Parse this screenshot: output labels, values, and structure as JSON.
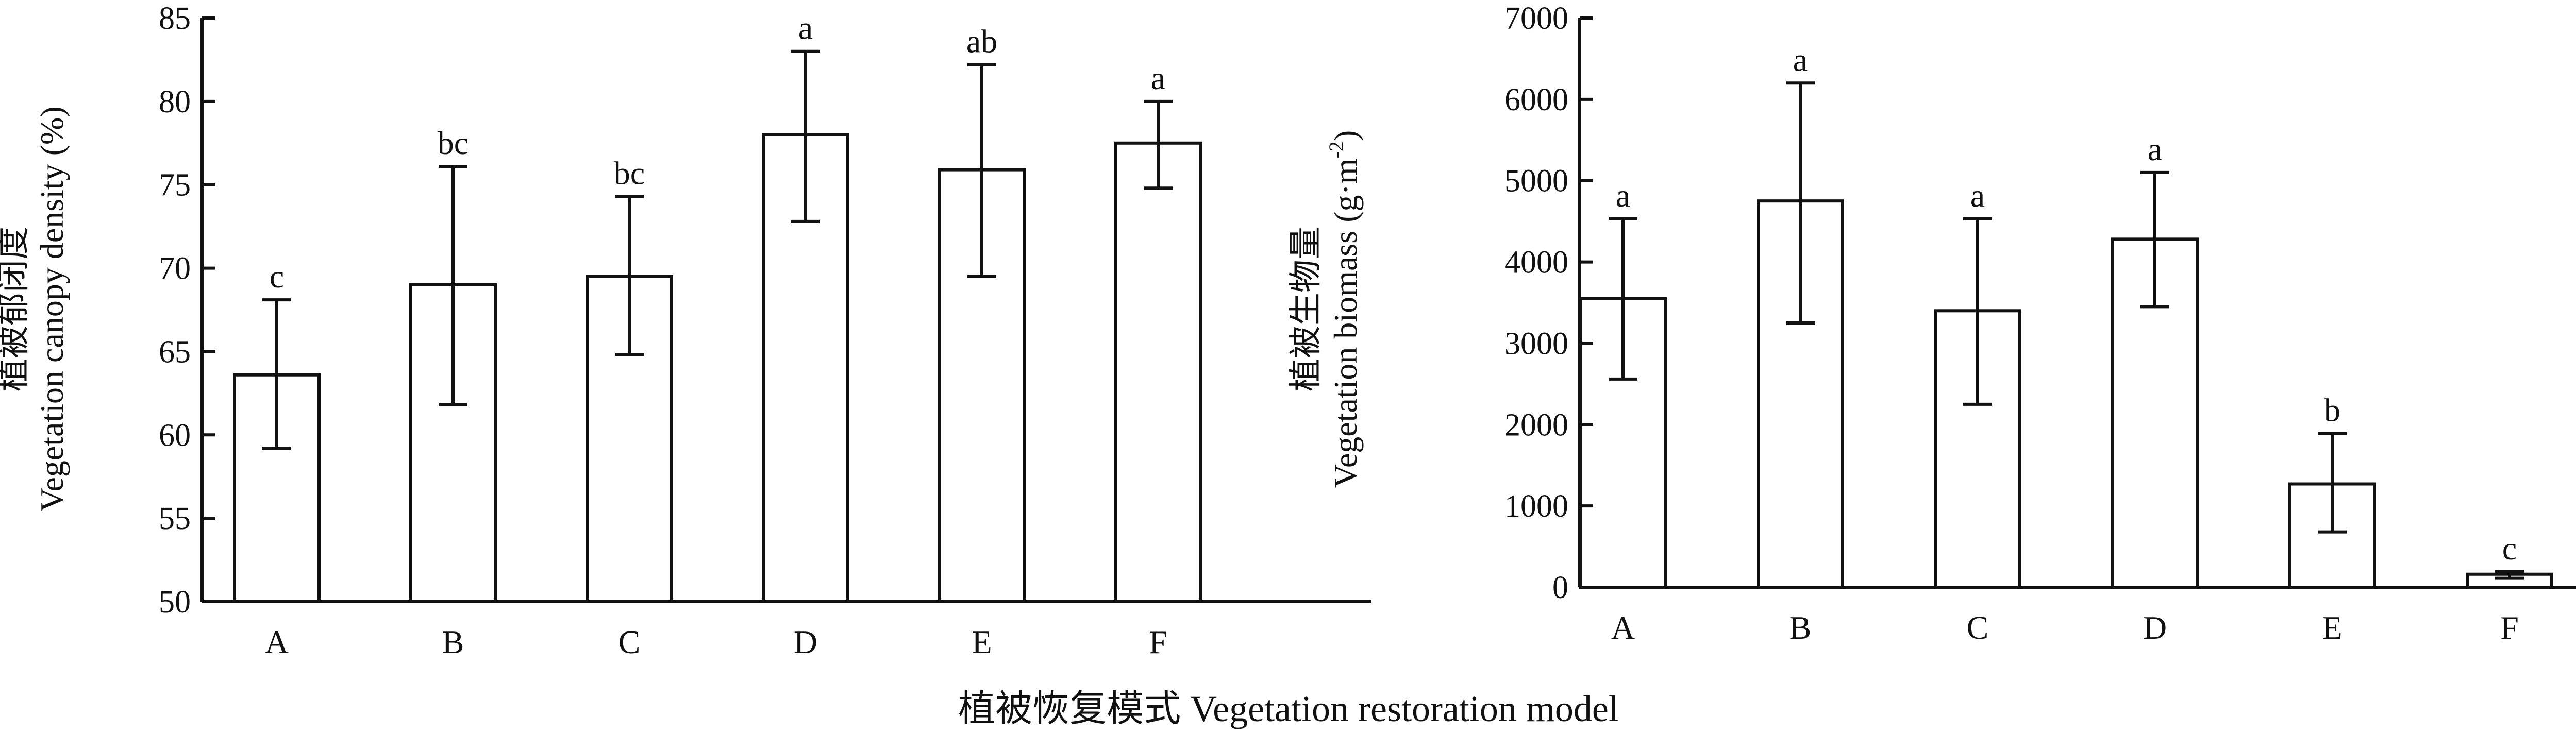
{
  "figure": {
    "shared_xlabel": "植被恢复模式 Vegetation restoration model"
  },
  "chart_data": [
    {
      "type": "bar",
      "title": "",
      "xlabel": "",
      "ylabel_cn": "植被郁闭度",
      "ylabel_en": "Vegetation canopy density (%)",
      "categories": [
        "A",
        "B",
        "C",
        "D",
        "E",
        "F"
      ],
      "values": [
        63.6,
        69.0,
        69.5,
        78.0,
        75.9,
        77.5
      ],
      "error_upper": [
        68.1,
        76.1,
        74.3,
        83.0,
        82.2,
        80.0
      ],
      "error_lower": [
        59.2,
        61.8,
        64.8,
        72.8,
        69.5,
        74.8
      ],
      "significance_labels": [
        "c",
        "bc",
        "bc",
        "a",
        "ab",
        "a"
      ],
      "ylim": [
        50,
        85
      ],
      "yticks": [
        50,
        55,
        60,
        65,
        70,
        75,
        80,
        85
      ],
      "grid": false
    },
    {
      "type": "bar",
      "title": "",
      "xlabel": "",
      "ylabel_cn": "植被生物量",
      "ylabel_en": "Vegetation biomass (g·m",
      "ylabel_sup": "-2",
      "ylabel_end": ")",
      "categories": [
        "A",
        "B",
        "C",
        "D",
        "E",
        "F"
      ],
      "values": [
        3550,
        4750,
        3400,
        4280,
        1270,
        160
      ],
      "error_upper": [
        4530,
        6200,
        4530,
        5100,
        1890,
        190
      ],
      "error_lower": [
        2560,
        3250,
        2250,
        3450,
        680,
        110
      ],
      "significance_labels": [
        "a",
        "a",
        "a",
        "a",
        "b",
        "c"
      ],
      "ylim": [
        0,
        7000
      ],
      "yticks": [
        0,
        1000,
        2000,
        3000,
        4000,
        5000,
        6000,
        7000
      ],
      "grid": false
    }
  ]
}
